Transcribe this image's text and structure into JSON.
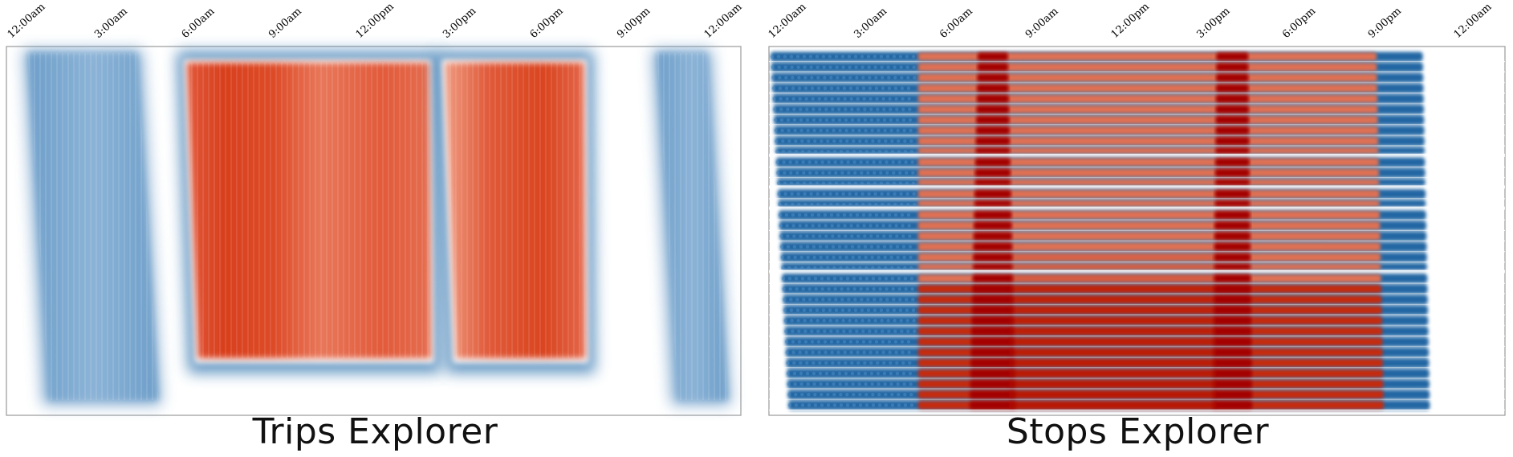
{
  "chart_data": [
    {
      "type": "heatmap",
      "title": "Trips Explorer",
      "x_ticks": [
        "12:00am",
        "3:00am",
        "6:00am",
        "9:00am",
        "12:00pm",
        "3:00pm",
        "6:00pm",
        "9:00pm",
        "12:00am"
      ],
      "x_range_hours": [
        0,
        24
      ],
      "grid": false,
      "colors": {
        "low": "#2f6fa8",
        "high": "#dd4a24",
        "background": "#ffffff"
      },
      "blocks": [
        {
          "level": "low",
          "start_hour": 0.3,
          "end_hour": 4.3
        },
        {
          "level": "high",
          "start_hour": 5.7,
          "end_hour": 14.1
        },
        {
          "level": "high",
          "start_hour": 14.4,
          "end_hour": 19.3
        },
        {
          "level": "low",
          "start_hour": 21.5,
          "end_hour": 23.5
        }
      ]
    },
    {
      "type": "heatmap",
      "title": "Stops Explorer",
      "x_ticks": [
        "12:00am",
        "3:00am",
        "6:00am",
        "9:00am",
        "12:00pm",
        "3:00pm",
        "6:00pm",
        "9:00pm",
        "12:00am"
      ],
      "x_range_hours": [
        0,
        24
      ],
      "grid": false,
      "colors": {
        "low": "#1f5f9e",
        "mid": "#e0714e",
        "high": "#a80000",
        "background": "#ffffff"
      },
      "peaks_hours": [
        7.7,
        16.0
      ],
      "active_range_hours": [
        5.0,
        21.0
      ]
    }
  ]
}
